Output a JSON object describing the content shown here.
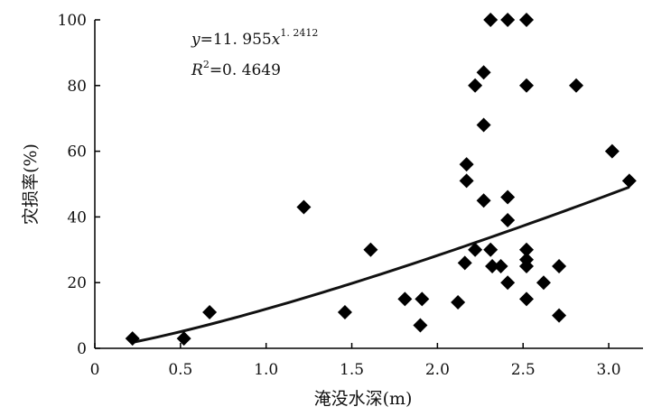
{
  "chart_data": {
    "type": "scatter",
    "xlabel": "淹没水深(m)",
    "ylabel": "灾损率(%)",
    "xlim": [
      0,
      3.2
    ],
    "ylim": [
      0,
      100
    ],
    "x_ticks": [
      0,
      0.5,
      1.0,
      1.5,
      2.0,
      2.5,
      3.0
    ],
    "x_tick_labels": [
      "0",
      "0.5",
      "1.0",
      "1.5",
      "2.0",
      "2.5",
      "3.0"
    ],
    "y_ticks": [
      0,
      20,
      40,
      60,
      80,
      100
    ],
    "y_tick_labels": [
      "0",
      "20",
      "40",
      "60",
      "80",
      "100"
    ],
    "grid": false,
    "marker": "diamond",
    "marker_color": "#000000",
    "series": [
      {
        "points": [
          [
            0.22,
            3
          ],
          [
            0.52,
            3
          ],
          [
            0.67,
            11
          ],
          [
            1.22,
            43
          ],
          [
            1.46,
            11
          ],
          [
            1.61,
            30
          ],
          [
            1.81,
            15
          ],
          [
            1.91,
            15
          ],
          [
            1.9,
            7
          ],
          [
            2.12,
            14
          ],
          [
            2.16,
            26
          ],
          [
            2.17,
            56
          ],
          [
            2.17,
            51
          ],
          [
            2.22,
            30
          ],
          [
            2.22,
            80
          ],
          [
            2.27,
            84
          ],
          [
            2.27,
            68
          ],
          [
            2.27,
            45
          ],
          [
            2.31,
            100
          ],
          [
            2.31,
            30
          ],
          [
            2.32,
            25
          ],
          [
            2.37,
            25
          ],
          [
            2.41,
            100
          ],
          [
            2.41,
            46
          ],
          [
            2.41,
            39
          ],
          [
            2.41,
            20
          ],
          [
            2.52,
            100
          ],
          [
            2.52,
            80
          ],
          [
            2.52,
            30
          ],
          [
            2.52,
            27
          ],
          [
            2.52,
            25
          ],
          [
            2.52,
            15
          ],
          [
            2.62,
            20
          ],
          [
            2.71,
            25
          ],
          [
            2.71,
            10
          ],
          [
            2.81,
            80
          ],
          [
            3.02,
            60
          ],
          [
            3.12,
            51
          ]
        ]
      }
    ],
    "fit": {
      "model": "power",
      "a": 11.955,
      "b": 1.2412,
      "x_range": [
        0.22,
        3.12
      ]
    },
    "annotations": {
      "eq_y": "y",
      "eq_coef": "=11. 955",
      "eq_x": "x",
      "eq_exp": "1. 2412",
      "r2_r": "R",
      "r2_sup": "2",
      "r2_val": "=0. 4649"
    }
  }
}
